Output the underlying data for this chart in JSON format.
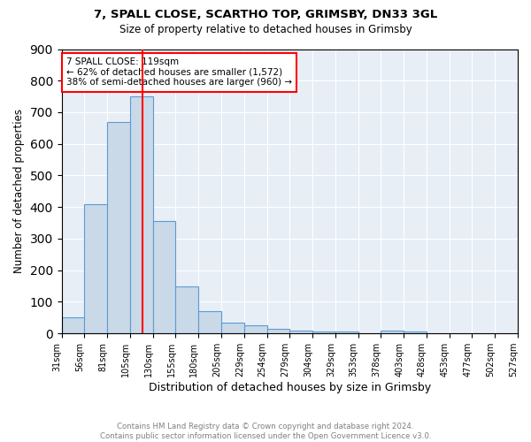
{
  "title1": "7, SPALL CLOSE, SCARTHO TOP, GRIMSBY, DN33 3GL",
  "title2": "Size of property relative to detached houses in Grimsby",
  "xlabel": "Distribution of detached houses by size in Grimsby",
  "ylabel": "Number of detached properties",
  "bin_labels": [
    "31sqm",
    "56sqm",
    "81sqm",
    "105sqm",
    "130sqm",
    "155sqm",
    "180sqm",
    "205sqm",
    "229sqm",
    "254sqm",
    "279sqm",
    "304sqm",
    "329sqm",
    "353sqm",
    "378sqm",
    "403sqm",
    "428sqm",
    "453sqm",
    "477sqm",
    "502sqm",
    "527sqm"
  ],
  "n_bins": 20,
  "bar_heights": [
    50,
    410,
    670,
    750,
    355,
    150,
    70,
    35,
    25,
    15,
    10,
    7,
    5,
    0,
    10,
    7,
    0,
    0,
    0,
    0
  ],
  "bar_color": "#c9d9e8",
  "bar_edge_color": "#5b9bd5",
  "vline_x": 119,
  "vline_color": "red",
  "annotation_text": "7 SPALL CLOSE: 119sqm\n← 62% of detached houses are smaller (1,572)\n38% of semi-detached houses are larger (960) →",
  "annotation_box_color": "white",
  "annotation_box_edge_color": "red",
  "ylim": [
    0,
    900
  ],
  "yticks": [
    0,
    100,
    200,
    300,
    400,
    500,
    600,
    700,
    800,
    900
  ],
  "background_color": "white",
  "grid_color": "#d0d8e8",
  "footnote": "Contains HM Land Registry data © Crown copyright and database right 2024.\nContains public sector information licensed under the Open Government Licence v3.0."
}
